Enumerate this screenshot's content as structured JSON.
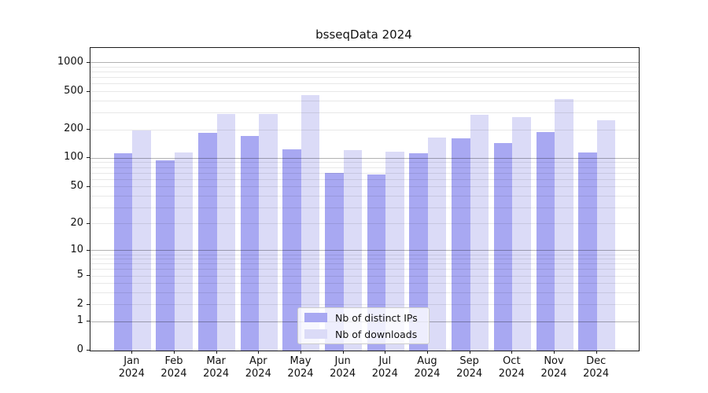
{
  "chart_data": {
    "type": "bar",
    "title": "bsseqData 2024",
    "scale": "log10(value+1)",
    "grid": true,
    "legend_position": "lower center",
    "categories": [
      "Jan",
      "Feb",
      "Mar",
      "Apr",
      "May",
      "Jun",
      "Jul",
      "Aug",
      "Sep",
      "Oct",
      "Nov",
      "Dec"
    ],
    "year_label": "2024",
    "series": [
      {
        "name": "Nb of distinct IPs",
        "color": "#a8a8f2",
        "values": [
          113,
          95,
          186,
          171,
          124,
          70,
          68,
          114,
          161,
          144,
          190,
          115
        ]
      },
      {
        "name": "Nb of downloads",
        "color": "#dbdbf7",
        "values": [
          198,
          116,
          294,
          293,
          458,
          122,
          118,
          166,
          285,
          269,
          419,
          253
        ]
      }
    ],
    "y_ticks": [
      0,
      1,
      2,
      5,
      10,
      20,
      50,
      100,
      200,
      500,
      1000
    ],
    "y_major_gridlines": [
      1,
      10,
      100,
      1000
    ],
    "y_minor_gridlines": [
      2,
      3,
      4,
      5,
      6,
      7,
      8,
      9,
      20,
      30,
      40,
      50,
      60,
      70,
      80,
      90,
      200,
      300,
      400,
      500,
      600,
      700,
      800,
      900
    ],
    "ylim": [
      0,
      1430
    ],
    "colors": {
      "axis": "#1a1a1a",
      "major_grid": "#b3b3b3",
      "minor_grid": "#e8e8e8",
      "background": "#ffffff"
    }
  }
}
